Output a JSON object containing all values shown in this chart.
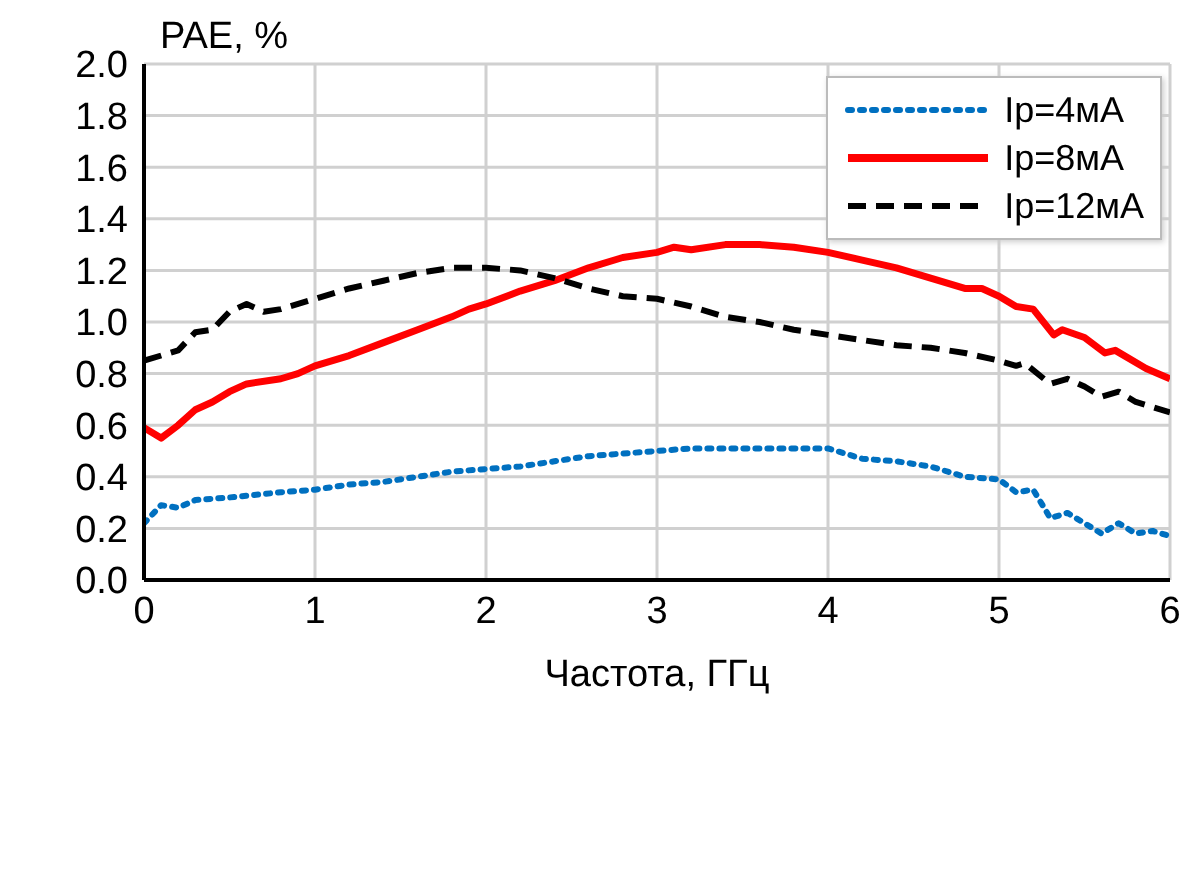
{
  "chart_data": {
    "type": "line",
    "xlabel": "Частота, ГГц",
    "ylabel": "PAE, %",
    "xlim": [
      0,
      6
    ],
    "xticks": [
      0,
      1,
      2,
      3,
      4,
      5,
      6
    ],
    "ylim": [
      0,
      2
    ],
    "yticks": [
      {
        "value": 0,
        "label": "0.0"
      },
      0.2,
      0.4,
      0.6,
      0.8,
      {
        "value": 1,
        "label": "1.0"
      },
      1.2,
      1.4,
      1.6,
      1.8,
      {
        "value": 2,
        "label": "2.0"
      }
    ],
    "grid": true,
    "legend": "top right",
    "marker": "none",
    "series": [
      {
        "name": "Ip=4мА",
        "color": "#0070c0",
        "line_style": "dotted",
        "x": [
          0,
          0.1,
          0.2,
          0.3,
          0.5,
          0.8,
          1,
          1.2,
          1.4,
          1.6,
          1.8,
          2,
          2.2,
          2.4,
          2.6,
          2.8,
          3,
          3.2,
          3.4,
          3.6,
          3.8,
          4,
          4.2,
          4.4,
          4.6,
          4.8,
          5,
          5.1,
          5.2,
          5.3,
          5.4,
          5.5,
          5.6,
          5.7,
          5.8,
          5.9,
          6
        ],
        "values": [
          0.22,
          0.29,
          0.28,
          0.31,
          0.32,
          0.34,
          0.35,
          0.37,
          0.38,
          0.4,
          0.42,
          0.43,
          0.44,
          0.46,
          0.48,
          0.49,
          0.5,
          0.51,
          0.51,
          0.51,
          0.51,
          0.51,
          0.47,
          0.46,
          0.44,
          0.4,
          0.39,
          0.34,
          0.35,
          0.24,
          0.26,
          0.22,
          0.18,
          0.22,
          0.18,
          0.19,
          0.17
        ]
      },
      {
        "name": "Ip=8мА",
        "color": "#ff0000",
        "line_style": "solid",
        "x": [
          0,
          0.1,
          0.2,
          0.3,
          0.4,
          0.5,
          0.6,
          0.8,
          0.9,
          1,
          1.2,
          1.4,
          1.6,
          1.8,
          1.9,
          2,
          2.2,
          2.4,
          2.6,
          2.8,
          3,
          3.1,
          3.2,
          3.4,
          3.6,
          3.8,
          4,
          4.2,
          4.4,
          4.6,
          4.8,
          4.9,
          5,
          5.1,
          5.2,
          5.32,
          5.37,
          5.5,
          5.62,
          5.68,
          5.86,
          6
        ],
        "values": [
          0.59,
          0.55,
          0.6,
          0.66,
          0.69,
          0.73,
          0.76,
          0.78,
          0.8,
          0.83,
          0.87,
          0.92,
          0.97,
          1.02,
          1.05,
          1.07,
          1.12,
          1.16,
          1.21,
          1.25,
          1.27,
          1.29,
          1.28,
          1.3,
          1.3,
          1.29,
          1.27,
          1.24,
          1.21,
          1.17,
          1.13,
          1.13,
          1.1,
          1.06,
          1.05,
          0.95,
          0.97,
          0.94,
          0.88,
          0.89,
          0.82,
          0.78
        ]
      },
      {
        "name": "Ip=12мА",
        "color": "#000000",
        "line_style": "dashed",
        "x": [
          0,
          0.2,
          0.3,
          0.4,
          0.5,
          0.6,
          0.7,
          0.8,
          1,
          1.2,
          1.4,
          1.6,
          1.8,
          2,
          2.2,
          2.4,
          2.6,
          2.8,
          3,
          3.2,
          3.4,
          3.6,
          3.8,
          4,
          4.2,
          4.4,
          4.6,
          4.8,
          5,
          5.1,
          5.15,
          5.3,
          5.4,
          5.5,
          5.6,
          5.7,
          5.8,
          6
        ],
        "values": [
          0.85,
          0.89,
          0.96,
          0.97,
          1.04,
          1.07,
          1.04,
          1.05,
          1.09,
          1.13,
          1.16,
          1.19,
          1.21,
          1.21,
          1.2,
          1.17,
          1.13,
          1.1,
          1.09,
          1.06,
          1.02,
          1,
          0.97,
          0.95,
          0.93,
          0.91,
          0.9,
          0.88,
          0.85,
          0.83,
          0.84,
          0.76,
          0.78,
          0.75,
          0.71,
          0.73,
          0.69,
          0.65
        ]
      }
    ]
  }
}
